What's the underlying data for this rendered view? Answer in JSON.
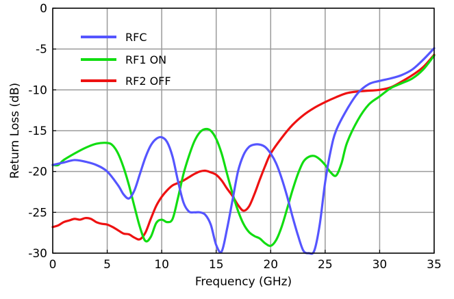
{
  "chart_data": {
    "type": "line",
    "title": "",
    "xlabel": "Frequency (GHz)",
    "ylabel": "Return Loss (dB)",
    "xlim": [
      0,
      35
    ],
    "ylim": [
      -30,
      0
    ],
    "x_ticks": [
      0,
      5,
      10,
      15,
      20,
      25,
      30,
      35
    ],
    "x_tick_labels": [
      "0",
      "5",
      "10",
      "15",
      "20",
      "25",
      "30",
      "35"
    ],
    "y_ticks": [
      0,
      -5,
      -10,
      -15,
      -20,
      -25,
      -30
    ],
    "y_tick_labels": [
      "0",
      "-5",
      "-10",
      "-15",
      "-20",
      "-25",
      "-30"
    ],
    "grid": true,
    "legend_position": "top-left",
    "series": [
      {
        "name": "RFC",
        "color": "#5555ff",
        "x": [
          0,
          1,
          2,
          3,
          4,
          5,
          6,
          6.5,
          7,
          7.5,
          8,
          8.5,
          9,
          9.5,
          10,
          10.5,
          11,
          11.5,
          12,
          12.5,
          13,
          13.5,
          14,
          14.5,
          15,
          15.5,
          16,
          16.5,
          17,
          17.5,
          18,
          18.5,
          19,
          19.5,
          20,
          20.5,
          21,
          21.5,
          22,
          22.5,
          23,
          23.5,
          24,
          24.5,
          25,
          25.5,
          26,
          27,
          28,
          29,
          30,
          31,
          32,
          33,
          34,
          35
        ],
        "y": [
          -19.2,
          -18.9,
          -18.6,
          -18.8,
          -19.2,
          -20,
          -21.7,
          -22.8,
          -23.3,
          -22.3,
          -20.3,
          -18.3,
          -16.8,
          -16,
          -15.8,
          -16.4,
          -18.2,
          -21.2,
          -23.8,
          -24.9,
          -25,
          -25,
          -25.3,
          -26.5,
          -29,
          -29.8,
          -27,
          -23.5,
          -20,
          -18,
          -17,
          -16.7,
          -16.7,
          -17,
          -17.8,
          -19,
          -20.8,
          -23,
          -25.5,
          -27.8,
          -29.7,
          -30,
          -29.7,
          -26.5,
          -21.3,
          -17.5,
          -15,
          -12.4,
          -10.4,
          -9.3,
          -8.9,
          -8.6,
          -8.2,
          -7.5,
          -6.3,
          -4.9
        ]
      },
      {
        "name": "RF1 ON",
        "color": "#11dd11",
        "x": [
          0,
          0.5,
          1,
          2,
          3,
          4,
          5,
          5.5,
          6,
          6.5,
          7,
          7.5,
          8,
          8.5,
          9,
          9.5,
          10,
          10.5,
          11,
          11.5,
          12,
          12.5,
          13,
          13.5,
          14,
          14.5,
          15,
          15.5,
          16,
          16.5,
          17,
          17.5,
          18,
          18.5,
          19,
          19.5,
          20,
          20.5,
          21,
          21.5,
          22,
          22.5,
          23,
          23.5,
          24,
          24.5,
          25,
          25.5,
          26,
          26.5,
          27,
          28,
          29,
          30,
          31,
          32,
          33,
          34,
          35
        ],
        "y": [
          -19.2,
          -19.2,
          -18.6,
          -17.8,
          -17.1,
          -16.6,
          -16.5,
          -16.8,
          -17.8,
          -19.5,
          -21.7,
          -24.3,
          -26.8,
          -28.5,
          -28,
          -26.3,
          -25.9,
          -26.2,
          -25.8,
          -23.2,
          -20.3,
          -18.1,
          -16.3,
          -15.2,
          -14.8,
          -15,
          -16,
          -17.8,
          -20.3,
          -22.7,
          -24.8,
          -26.4,
          -27.4,
          -27.9,
          -28.2,
          -28.8,
          -29.1,
          -28.4,
          -26.8,
          -24.6,
          -22.3,
          -20.3,
          -18.8,
          -18.2,
          -18.1,
          -18.5,
          -19.2,
          -20.1,
          -20.5,
          -19,
          -16.5,
          -13.7,
          -11.8,
          -10.8,
          -9.8,
          -9.2,
          -8.6,
          -7.5,
          -5.8
        ]
      },
      {
        "name": "RF2 OFF",
        "color": "#ee1111",
        "x": [
          0,
          0.5,
          1,
          1.5,
          2,
          2.5,
          3,
          3.5,
          4,
          4.5,
          5,
          5.5,
          6,
          6.5,
          7,
          7.5,
          8,
          8.5,
          9,
          9.5,
          10,
          10.5,
          11,
          11.5,
          12,
          12.5,
          13,
          13.5,
          14,
          14.5,
          15,
          15.5,
          16,
          16.5,
          17,
          17.5,
          18,
          18.5,
          19,
          19.5,
          20,
          21,
          22,
          23,
          24,
          25,
          26,
          27,
          28,
          29,
          30,
          31,
          32,
          33,
          34,
          35
        ],
        "y": [
          -26.8,
          -26.6,
          -26.2,
          -26,
          -25.8,
          -25.9,
          -25.7,
          -25.8,
          -26.2,
          -26.4,
          -26.5,
          -26.8,
          -27.2,
          -27.6,
          -27.7,
          -28.1,
          -28.3,
          -27.5,
          -25.8,
          -24.2,
          -23.1,
          -22.3,
          -21.7,
          -21.4,
          -21.1,
          -20.7,
          -20.3,
          -20,
          -19.9,
          -20.1,
          -20.4,
          -21.1,
          -22.1,
          -23,
          -24.1,
          -24.8,
          -24.3,
          -22.8,
          -21,
          -19.3,
          -17.8,
          -15.9,
          -14.3,
          -13.1,
          -12.2,
          -11.5,
          -10.9,
          -10.4,
          -10.2,
          -10.1,
          -10,
          -9.7,
          -9,
          -8.2,
          -7.2,
          -5.7
        ]
      }
    ]
  }
}
